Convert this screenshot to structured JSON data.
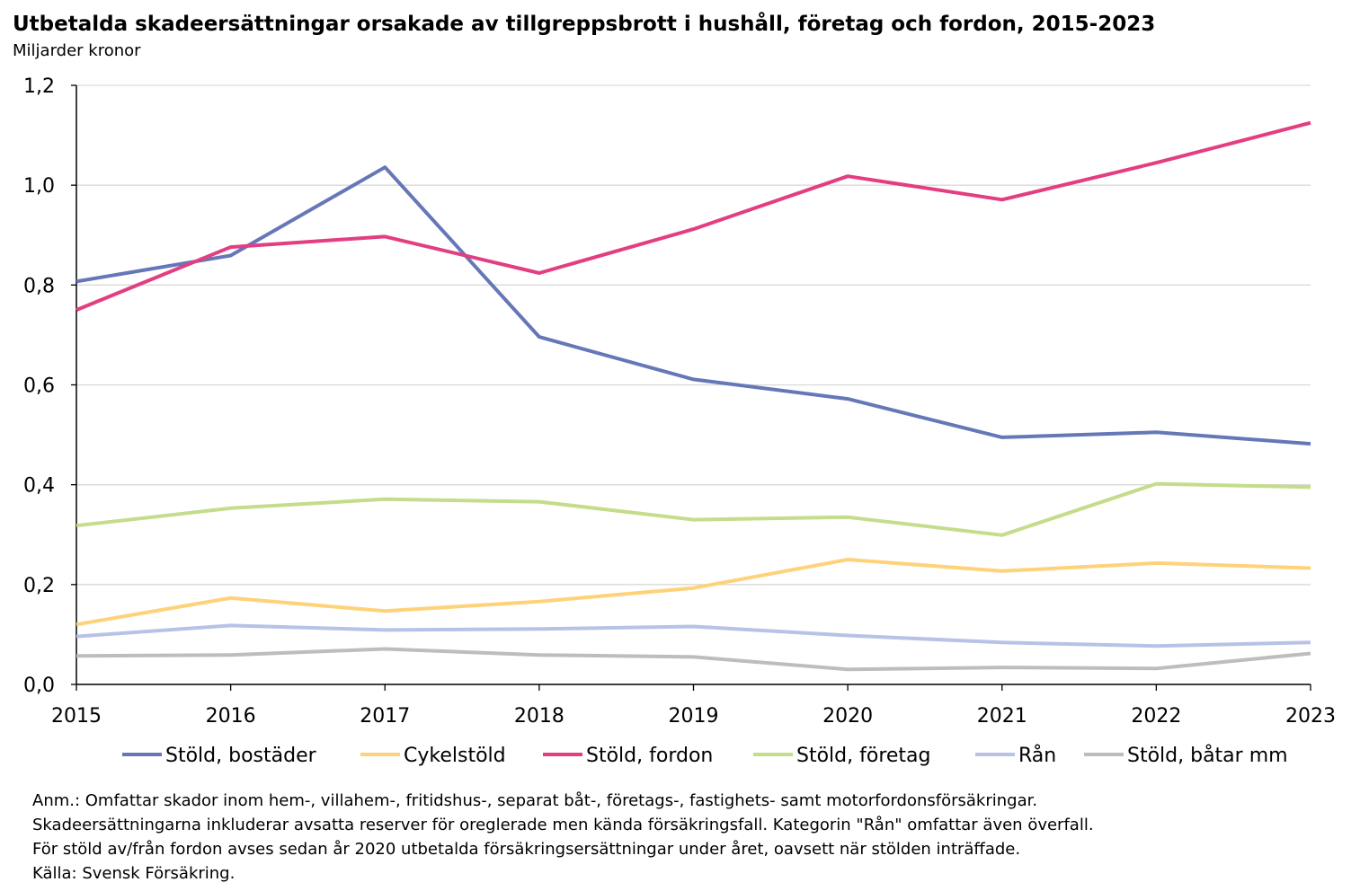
{
  "chart_data": {
    "type": "line",
    "title": "Utbetalda skadeersättningar orsakade av tillgreppsbrott i hushåll, företag och fordon, 2015-2023",
    "subtitle": "Miljarder kronor",
    "xlabel": "",
    "ylabel": "Miljarder kronor",
    "categories": [
      "2015",
      "2016",
      "2017",
      "2018",
      "2019",
      "2020",
      "2021",
      "2022",
      "2023"
    ],
    "ylim": [
      0,
      1.2
    ],
    "yticks": [
      "0,0",
      "0,2",
      "0,4",
      "0,6",
      "0,8",
      "1,0",
      "1,2"
    ],
    "grid": true,
    "legend_position": "bottom",
    "series": [
      {
        "name": "Stöld, bostäder",
        "color": "#6677b8",
        "values": [
          0.807,
          0.859,
          1.036,
          0.696,
          0.611,
          0.572,
          0.495,
          0.505,
          0.482
        ]
      },
      {
        "name": "Cykelstöld",
        "color": "#ffd27a",
        "values": [
          0.12,
          0.173,
          0.147,
          0.166,
          0.193,
          0.25,
          0.227,
          0.243,
          0.233
        ]
      },
      {
        "name": "Stöld, fordon",
        "color": "#e23e81",
        "values": [
          0.75,
          0.876,
          0.897,
          0.824,
          0.912,
          1.018,
          0.971,
          1.045,
          1.125
        ]
      },
      {
        "name": "Stöld, företag",
        "color": "#c3dd8a",
        "values": [
          0.318,
          0.353,
          0.371,
          0.366,
          0.33,
          0.335,
          0.299,
          0.402,
          0.395
        ]
      },
      {
        "name": "Rån",
        "color": "#b8c2e6",
        "values": [
          0.096,
          0.118,
          0.109,
          0.111,
          0.116,
          0.098,
          0.084,
          0.077,
          0.084
        ]
      },
      {
        "name": "Stöld, båtar mm",
        "color": "#bdbdbd",
        "values": [
          0.057,
          0.059,
          0.071,
          0.059,
          0.055,
          0.03,
          0.034,
          0.032,
          0.062
        ]
      }
    ]
  },
  "notes": [
    "Anm.: Omfattar skador inom hem-, villahem-, fritidshus-, separat båt-, företags-, fastighets- samt motorfordonsförsäkringar.",
    "Skadeersättningarna inkluderar avsatta reserver för oreglerade men kända försäkringsfall. Kategorin \"Rån\" omfattar även överfall.",
    "För stöld av/från fordon avses sedan år 2020 utbetalda försäkringsersättningar under året, oavsett när stölden inträffade.",
    "Källa: Svensk Försäkring."
  ]
}
